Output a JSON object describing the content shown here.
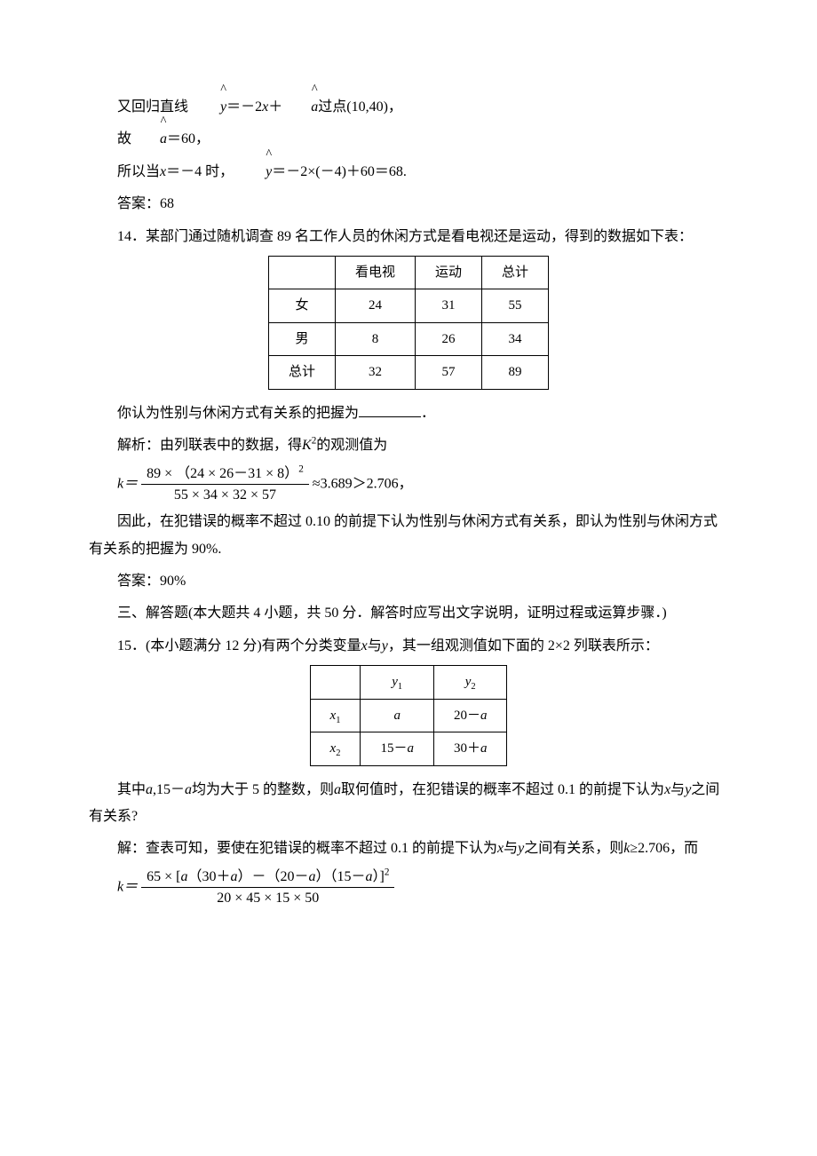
{
  "p1_pre": "又回归直线",
  "p1_eq_lhs": "y",
  "p1_eq_rhs_a": "＝－2",
  "p1_eq_rhs_b": "x",
  "p1_eq_rhs_c": "＋",
  "p1_eq_rhs_d": "a",
  "p1_suffix": "过点(10,40)，",
  "p2_pre": "故",
  "p2_var": "a",
  "p2_after": "＝60，",
  "p3_pre": "所以当",
  "p3_x": "x",
  "p3_mid": "＝－4 时，",
  "p3_y": "y",
  "p3_after": "＝－2×(－4)＋60＝68.",
  "ans1_label": "答案：",
  "ans1_val": "68",
  "q14": "14．某部门通过随机调查 89 名工作人员的休闲方式是看电视还是运动，得到的数据如下表：",
  "t1": {
    "h_blank": "",
    "h_tv": "看电视",
    "h_sport": "运动",
    "h_total": "总计",
    "r1_label": "女",
    "r1_c1": "24",
    "r1_c2": "31",
    "r1_c3": "55",
    "r2_label": "男",
    "r2_c1": "8",
    "r2_c2": "26",
    "r2_c3": "34",
    "r3_label": "总计",
    "r3_c1": "32",
    "r3_c2": "57",
    "r3_c3": "89"
  },
  "q14_blank": "你认为性别与休闲方式有关系的把握为",
  "q14_blank_after": "．",
  "sol14a_pre": "解析：由列联表中的数据，得",
  "sol14a_K": "K",
  "sol14a_after": "的观测值为",
  "frac1_num": "89 × （24 × 26－31 × 8）",
  "frac1_num_sup": "2",
  "frac1_den": "55 × 34 × 32 × 57",
  "k_eq": "k＝",
  "frac1_after": "≈3.689＞2.706，",
  "sol14b": "因此，在犯错误的概率不超过 0.10 的前提下认为性别与休闲方式有关系，即认为性别与休闲方式有关系的把握为 90%.",
  "ans2_label": "答案：",
  "ans2_val": "90%",
  "section3": "三、解答题(本大题共 4 小题，共 50 分．解答时应写出文字说明，证明过程或运算步骤．)",
  "q15_pre": "15．(本小题满分 12 分)有两个分类变量",
  "q15_x": "x",
  "q15_mid1": "与",
  "q15_y": "y",
  "q15_after": "，其一组观测值如下面的 2×2 列联表所示：",
  "t2": {
    "h_blank": "",
    "h_y1": "y",
    "h_y1_sub": "1",
    "h_y2": "y",
    "h_y2_sub": "2",
    "r1_label": "x",
    "r1_label_sub": "1",
    "r1_c1": "a",
    "r1_c2_pre": "20－",
    "r1_c2_a": "a",
    "r2_label": "x",
    "r2_label_sub": "2",
    "r2_c1_pre": "15－",
    "r2_c1_a": "a",
    "r2_c2_pre": "30＋",
    "r2_c2_a": "a"
  },
  "q15b_pre": "其中",
  "q15b_a1": "a",
  "q15b_mid1": ",15－",
  "q15b_a2": "a",
  "q15b_mid2": "均为大于 5 的整数，则",
  "q15b_a3": "a",
  "q15b_mid3": "取何值时，在犯错误的概率不超过 0.1 的前提下认为",
  "q15b_x": "x",
  "q15b_mid4": "与",
  "q15b_y": "y",
  "q15b_after": "之间有关系?",
  "sol15a_pre": "解：查表可知，要使在犯错误的概率不超过 0.1 的前提下认为",
  "sol15a_x": "x",
  "sol15a_mid": "与",
  "sol15a_y": "y",
  "sol15a_after1": "之间有关系，则",
  "sol15a_k": "k",
  "sol15a_after2": "≥2.706，而",
  "k2_eq": "k＝",
  "frac2_num_a": "65 × [",
  "frac2_num_b": "a",
  "frac2_num_c": "（30＋",
  "frac2_num_d": "a",
  "frac2_num_e": "）－（20－",
  "frac2_num_f": "a",
  "frac2_num_g": "）（15－",
  "frac2_num_h": "a",
  "frac2_num_i": "）]",
  "frac2_num_sup": "2",
  "frac2_den": "20 × 45 × 15 × 50"
}
